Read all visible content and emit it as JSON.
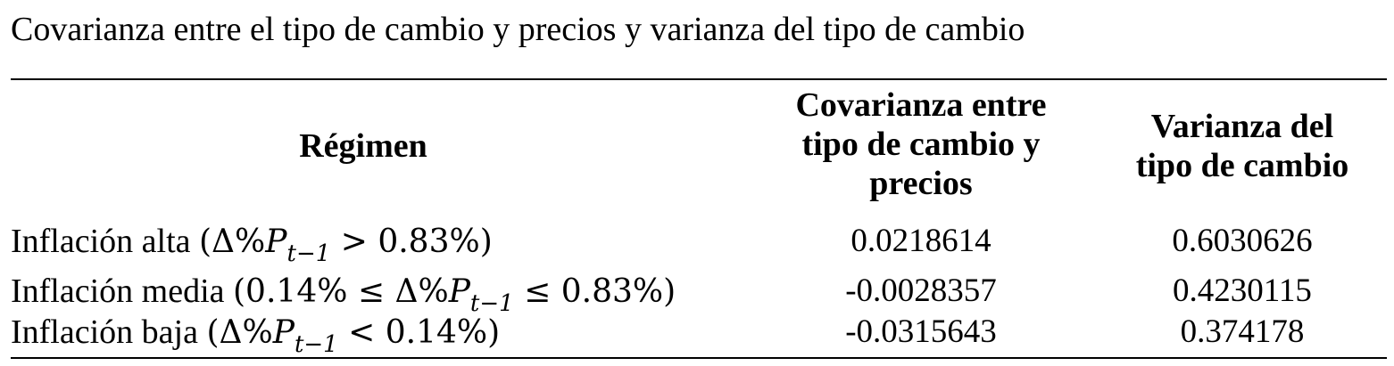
{
  "title": "Covarianza entre el tipo de cambio y precios y varianza del tipo de cambio",
  "table": {
    "headers": {
      "regimen": "Régimen",
      "covarianza_line1": "Covarianza entre",
      "covarianza_line2": "tipo de cambio y",
      "covarianza_line3": "precios",
      "varianza_line1": "Varianza del",
      "varianza_line2": "tipo de cambio"
    },
    "rows": [
      {
        "label": "Inflación alta",
        "cond_open": "(Δ%",
        "cond_var": "P",
        "cond_sub": "t−1",
        "cond_rest": " > 0.83%)",
        "covarianza": "0.0218614",
        "varianza": "0.6030626"
      },
      {
        "label": "Inflación media",
        "cond_pre": "(0.14% ≤ Δ%",
        "cond_var": "P",
        "cond_sub": "t−1",
        "cond_rest": " ≤ 0.83%)",
        "covarianza": "-0.0028357",
        "varianza": "0.4230115"
      },
      {
        "label": "Inflación baja",
        "cond_open": "(Δ%",
        "cond_var": "P",
        "cond_sub": "t−1",
        "cond_rest": " < 0.14%)",
        "covarianza": "-0.0315643",
        "varianza": "0.374178"
      }
    ]
  }
}
